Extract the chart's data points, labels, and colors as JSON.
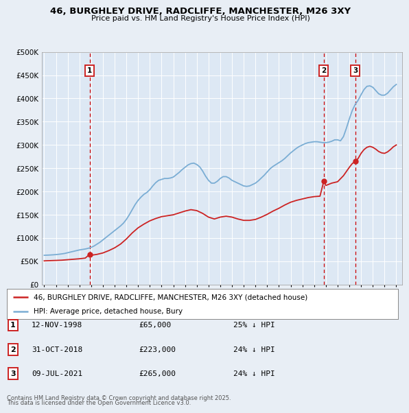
{
  "title_line1": "46, BURGHLEY DRIVE, RADCLIFFE, MANCHESTER, M26 3XY",
  "title_line2": "Price paid vs. HM Land Registry's House Price Index (HPI)",
  "hpi_label": "HPI: Average price, detached house, Bury",
  "property_label": "46, BURGHLEY DRIVE, RADCLIFFE, MANCHESTER, M26 3XY (detached house)",
  "hpi_color": "#7aadd4",
  "property_color": "#cc2222",
  "vline_color": "#cc0000",
  "background_color": "#e8eef5",
  "plot_bg_color": "#dde8f4",
  "grid_color": "#ffffff",
  "ylim": [
    0,
    500000
  ],
  "yticks": [
    0,
    50000,
    100000,
    150000,
    200000,
    250000,
    300000,
    350000,
    400000,
    450000,
    500000
  ],
  "xlim_start": 1994.8,
  "xlim_end": 2025.5,
  "annotations": [
    {
      "num": 1,
      "year": 1998.87,
      "price": 65000,
      "date": "12-NOV-1998",
      "pct": "25%"
    },
    {
      "num": 2,
      "year": 2018.83,
      "price": 223000,
      "date": "31-OCT-2018",
      "pct": "24%"
    },
    {
      "num": 3,
      "year": 2021.52,
      "price": 265000,
      "date": "09-JUL-2021",
      "pct": "24%"
    }
  ],
  "footer_line1": "Contains HM Land Registry data © Crown copyright and database right 2025.",
  "footer_line2": "This data is licensed under the Open Government Licence v3.0.",
  "hpi_data": [
    [
      1995.0,
      63000
    ],
    [
      1995.25,
      63300
    ],
    [
      1995.5,
      63600
    ],
    [
      1995.75,
      64000
    ],
    [
      1996.0,
      64500
    ],
    [
      1996.25,
      65200
    ],
    [
      1996.5,
      66000
    ],
    [
      1996.75,
      67000
    ],
    [
      1997.0,
      68500
    ],
    [
      1997.25,
      70000
    ],
    [
      1997.5,
      71500
    ],
    [
      1997.75,
      73000
    ],
    [
      1998.0,
      74500
    ],
    [
      1998.25,
      75500
    ],
    [
      1998.5,
      76500
    ],
    [
      1998.75,
      78000
    ],
    [
      1999.0,
      80000
    ],
    [
      1999.25,
      83000
    ],
    [
      1999.5,
      87000
    ],
    [
      1999.75,
      91000
    ],
    [
      2000.0,
      96000
    ],
    [
      2000.25,
      101000
    ],
    [
      2000.5,
      106000
    ],
    [
      2000.75,
      111000
    ],
    [
      2001.0,
      116000
    ],
    [
      2001.25,
      121000
    ],
    [
      2001.5,
      126000
    ],
    [
      2001.75,
      132000
    ],
    [
      2002.0,
      140000
    ],
    [
      2002.25,
      150000
    ],
    [
      2002.5,
      161000
    ],
    [
      2002.75,
      172000
    ],
    [
      2003.0,
      181000
    ],
    [
      2003.25,
      188000
    ],
    [
      2003.5,
      194000
    ],
    [
      2003.75,
      198000
    ],
    [
      2004.0,
      204000
    ],
    [
      2004.25,
      212000
    ],
    [
      2004.5,
      219000
    ],
    [
      2004.75,
      224000
    ],
    [
      2005.0,
      226000
    ],
    [
      2005.25,
      228000
    ],
    [
      2005.5,
      228000
    ],
    [
      2005.75,
      229000
    ],
    [
      2006.0,
      231000
    ],
    [
      2006.25,
      236000
    ],
    [
      2006.5,
      241000
    ],
    [
      2006.75,
      247000
    ],
    [
      2007.0,
      252000
    ],
    [
      2007.25,
      257000
    ],
    [
      2007.5,
      260000
    ],
    [
      2007.75,
      261000
    ],
    [
      2008.0,
      258000
    ],
    [
      2008.25,
      253000
    ],
    [
      2008.5,
      244000
    ],
    [
      2008.75,
      233000
    ],
    [
      2009.0,
      224000
    ],
    [
      2009.25,
      218000
    ],
    [
      2009.5,
      218000
    ],
    [
      2009.75,
      222000
    ],
    [
      2010.0,
      228000
    ],
    [
      2010.25,
      232000
    ],
    [
      2010.5,
      232000
    ],
    [
      2010.75,
      229000
    ],
    [
      2011.0,
      224000
    ],
    [
      2011.25,
      221000
    ],
    [
      2011.5,
      218000
    ],
    [
      2011.75,
      215000
    ],
    [
      2012.0,
      212000
    ],
    [
      2012.25,
      211000
    ],
    [
      2012.5,
      212000
    ],
    [
      2012.75,
      215000
    ],
    [
      2013.0,
      218000
    ],
    [
      2013.25,
      223000
    ],
    [
      2013.5,
      229000
    ],
    [
      2013.75,
      235000
    ],
    [
      2014.0,
      242000
    ],
    [
      2014.25,
      249000
    ],
    [
      2014.5,
      254000
    ],
    [
      2014.75,
      258000
    ],
    [
      2015.0,
      262000
    ],
    [
      2015.25,
      266000
    ],
    [
      2015.5,
      271000
    ],
    [
      2015.75,
      277000
    ],
    [
      2016.0,
      283000
    ],
    [
      2016.25,
      288000
    ],
    [
      2016.5,
      293000
    ],
    [
      2016.75,
      297000
    ],
    [
      2017.0,
      300000
    ],
    [
      2017.25,
      303000
    ],
    [
      2017.5,
      305000
    ],
    [
      2017.75,
      306000
    ],
    [
      2018.0,
      307000
    ],
    [
      2018.25,
      307000
    ],
    [
      2018.5,
      306000
    ],
    [
      2018.75,
      305000
    ],
    [
      2019.0,
      305000
    ],
    [
      2019.25,
      306000
    ],
    [
      2019.5,
      308000
    ],
    [
      2019.75,
      311000
    ],
    [
      2020.0,
      311000
    ],
    [
      2020.25,
      309000
    ],
    [
      2020.5,
      318000
    ],
    [
      2020.75,
      336000
    ],
    [
      2021.0,
      356000
    ],
    [
      2021.25,
      374000
    ],
    [
      2021.5,
      387000
    ],
    [
      2021.75,
      396000
    ],
    [
      2022.0,
      408000
    ],
    [
      2022.25,
      419000
    ],
    [
      2022.5,
      426000
    ],
    [
      2022.75,
      427000
    ],
    [
      2023.0,
      424000
    ],
    [
      2023.25,
      417000
    ],
    [
      2023.5,
      410000
    ],
    [
      2023.75,
      407000
    ],
    [
      2024.0,
      407000
    ],
    [
      2024.25,
      411000
    ],
    [
      2024.5,
      418000
    ],
    [
      2024.75,
      425000
    ],
    [
      2025.0,
      430000
    ]
  ],
  "property_data": [
    [
      1995.0,
      51000
    ],
    [
      1995.5,
      51500
    ],
    [
      1996.0,
      52000
    ],
    [
      1996.5,
      52500
    ],
    [
      1997.0,
      53500
    ],
    [
      1997.5,
      54500
    ],
    [
      1998.0,
      55500
    ],
    [
      1998.5,
      57000
    ],
    [
      1998.87,
      65000
    ],
    [
      1999.0,
      63000
    ],
    [
      1999.5,
      65000
    ],
    [
      2000.0,
      68000
    ],
    [
      2000.5,
      73000
    ],
    [
      2001.0,
      79000
    ],
    [
      2001.5,
      87000
    ],
    [
      2002.0,
      98000
    ],
    [
      2002.5,
      111000
    ],
    [
      2003.0,
      122000
    ],
    [
      2003.5,
      130000
    ],
    [
      2004.0,
      137000
    ],
    [
      2004.5,
      142000
    ],
    [
      2005.0,
      146000
    ],
    [
      2005.5,
      148000
    ],
    [
      2006.0,
      150000
    ],
    [
      2006.5,
      154000
    ],
    [
      2007.0,
      158000
    ],
    [
      2007.5,
      161000
    ],
    [
      2008.0,
      159000
    ],
    [
      2008.5,
      153000
    ],
    [
      2009.0,
      145000
    ],
    [
      2009.5,
      141000
    ],
    [
      2010.0,
      145000
    ],
    [
      2010.5,
      147000
    ],
    [
      2011.0,
      145000
    ],
    [
      2011.5,
      141000
    ],
    [
      2012.0,
      138000
    ],
    [
      2012.5,
      138000
    ],
    [
      2013.0,
      140000
    ],
    [
      2013.5,
      145000
    ],
    [
      2014.0,
      151000
    ],
    [
      2014.5,
      158000
    ],
    [
      2015.0,
      164000
    ],
    [
      2015.5,
      171000
    ],
    [
      2016.0,
      177000
    ],
    [
      2016.5,
      181000
    ],
    [
      2017.0,
      184000
    ],
    [
      2017.5,
      187000
    ],
    [
      2018.0,
      189000
    ],
    [
      2018.5,
      190000
    ],
    [
      2018.83,
      223000
    ],
    [
      2019.0,
      213000
    ],
    [
      2019.5,
      218000
    ],
    [
      2020.0,
      221000
    ],
    [
      2020.5,
      234000
    ],
    [
      2021.0,
      252000
    ],
    [
      2021.25,
      260000
    ],
    [
      2021.52,
      265000
    ],
    [
      2021.75,
      271000
    ],
    [
      2022.0,
      282000
    ],
    [
      2022.25,
      290000
    ],
    [
      2022.5,
      295000
    ],
    [
      2022.75,
      297000
    ],
    [
      2023.0,
      295000
    ],
    [
      2023.25,
      291000
    ],
    [
      2023.5,
      286000
    ],
    [
      2023.75,
      283000
    ],
    [
      2024.0,
      282000
    ],
    [
      2024.25,
      285000
    ],
    [
      2024.5,
      290000
    ],
    [
      2024.75,
      296000
    ],
    [
      2025.0,
      300000
    ]
  ]
}
